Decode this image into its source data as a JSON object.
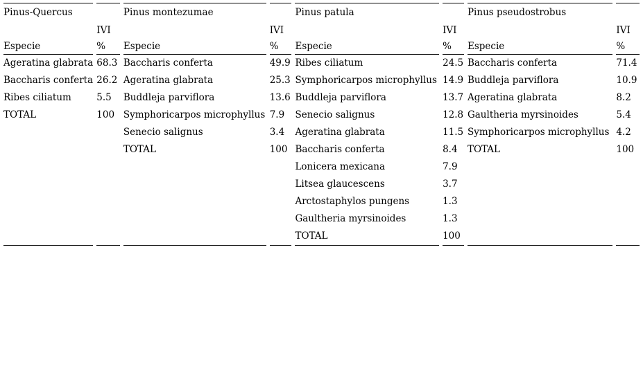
{
  "page": {
    "background": "#ffffff"
  },
  "colors": {
    "text": "#000000",
    "rule": "#000000",
    "background": "#ffffff"
  },
  "table": {
    "header": {
      "especie": "Especie",
      "ivi": "IVI",
      "percent": "%"
    },
    "groups": [
      {
        "title": "Pinus-Quercus",
        "rows": [
          {
            "especie": "Ageratina glabrata",
            "ivi": "68.3"
          },
          {
            "especie": "Baccharis conferta",
            "ivi": "26.2"
          },
          {
            "especie": "Ribes ciliatum",
            "ivi": "5.5"
          },
          {
            "especie": "TOTAL",
            "ivi": "100"
          }
        ]
      },
      {
        "title": "Pinus montezumae",
        "rows": [
          {
            "especie": "Baccharis conferta",
            "ivi": "49.9"
          },
          {
            "especie": "Ageratina glabrata",
            "ivi": "25.3"
          },
          {
            "especie": "Buddleja parviflora",
            "ivi": "13.6"
          },
          {
            "especie": "Symphoricarpos microphyllus",
            "ivi": "7.9"
          },
          {
            "especie": "Senecio salignus",
            "ivi": "3.4"
          },
          {
            "especie": "TOTAL",
            "ivi": "100"
          }
        ]
      },
      {
        "title": "Pinus patula",
        "rows": [
          {
            "especie": "Ribes ciliatum",
            "ivi": "24.5"
          },
          {
            "especie": "Symphoricarpos microphyllus",
            "ivi": "14.9"
          },
          {
            "especie": "Buddleja parviflora",
            "ivi": "13.7"
          },
          {
            "especie": "Senecio salignus",
            "ivi": "12.8"
          },
          {
            "especie": "Ageratina glabrata",
            "ivi": "11.5"
          },
          {
            "especie": "Baccharis conferta",
            "ivi": "8.4"
          },
          {
            "especie": "Lonicera mexicana",
            "ivi": "7.9"
          },
          {
            "especie": "Litsea glaucescens",
            "ivi": "3.7"
          },
          {
            "especie": "Arctostaphylos pungens",
            "ivi": "1.3"
          },
          {
            "especie": "Gaultheria myrsinoides",
            "ivi": "1.3"
          },
          {
            "especie": "TOTAL",
            "ivi": "100"
          }
        ]
      },
      {
        "title": "Pinus pseudostrobus",
        "rows": [
          {
            "especie": "Baccharis conferta",
            "ivi": "71.4"
          },
          {
            "especie": "Buddleja parviflora",
            "ivi": "10.9"
          },
          {
            "especie": "Ageratina glabrata",
            "ivi": "8.2"
          },
          {
            "especie": "Gaultheria myrsinoides",
            "ivi": "5.4"
          },
          {
            "especie": "Symphoricarpos microphyllus",
            "ivi": "4.2"
          },
          {
            "especie": "TOTAL",
            "ivi": "100"
          }
        ]
      }
    ]
  }
}
